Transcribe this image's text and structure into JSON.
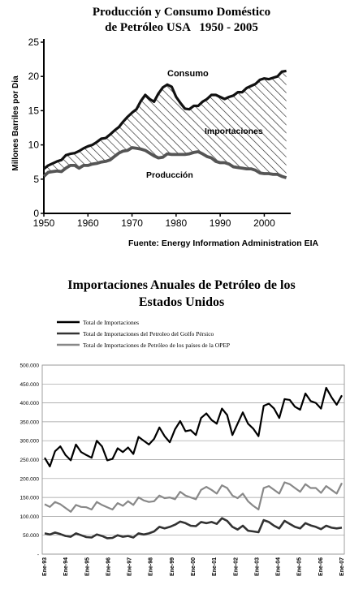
{
  "chart_data": [
    {
      "type": "area",
      "title_line1": "Producción y Consumo Doméstico",
      "title_line2": "de Petróleo USA   1950 - 2005",
      "ylabel": "Millones Barriles por Dia",
      "xlim": [
        1950,
        2006
      ],
      "ylim": [
        0,
        25
      ],
      "xticks": [
        1950,
        1960,
        1970,
        1980,
        1990,
        2000
      ],
      "yticks": [
        0,
        5,
        10,
        15,
        20,
        25
      ],
      "source_text": "Fuente:  Energy Information Administration  EIA",
      "annotations": [
        "Consumo",
        "Importaciones",
        "Producción"
      ],
      "x": [
        1950,
        1951,
        1952,
        1953,
        1954,
        1955,
        1956,
        1957,
        1958,
        1959,
        1960,
        1961,
        1962,
        1963,
        1964,
        1965,
        1966,
        1967,
        1968,
        1969,
        1970,
        1971,
        1972,
        1973,
        1974,
        1975,
        1976,
        1977,
        1978,
        1979,
        1980,
        1981,
        1982,
        1983,
        1984,
        1985,
        1986,
        1987,
        1988,
        1989,
        1990,
        1991,
        1992,
        1993,
        1994,
        1995,
        1996,
        1997,
        1998,
        1999,
        2000,
        2001,
        2002,
        2003,
        2004,
        2005
      ],
      "series": [
        {
          "name": "Consumo",
          "values": [
            6.5,
            7.0,
            7.3,
            7.6,
            7.8,
            8.5,
            8.7,
            8.8,
            9.1,
            9.5,
            9.8,
            10.0,
            10.4,
            10.9,
            11.0,
            11.5,
            12.1,
            12.6,
            13.4,
            14.1,
            14.7,
            15.2,
            16.4,
            17.3,
            16.7,
            16.3,
            17.5,
            18.4,
            18.8,
            18.5,
            17.0,
            16.1,
            15.3,
            15.2,
            15.7,
            15.7,
            16.3,
            16.7,
            17.3,
            17.3,
            17.0,
            16.7,
            17.0,
            17.2,
            17.7,
            17.7,
            18.3,
            18.6,
            18.9,
            19.5,
            19.7,
            19.6,
            19.8,
            20.0,
            20.7,
            20.8
          ]
        },
        {
          "name": "Producción",
          "values": [
            5.4,
            6.0,
            6.1,
            6.2,
            6.1,
            6.6,
            7.0,
            7.0,
            6.6,
            7.0,
            7.0,
            7.2,
            7.3,
            7.5,
            7.6,
            7.8,
            8.3,
            8.8,
            9.1,
            9.2,
            9.6,
            9.5,
            9.4,
            9.2,
            8.8,
            8.4,
            8.1,
            8.2,
            8.7,
            8.6,
            8.6,
            8.6,
            8.6,
            8.7,
            8.9,
            9.0,
            8.7,
            8.3,
            8.1,
            7.6,
            7.4,
            7.4,
            7.2,
            6.8,
            6.7,
            6.6,
            6.5,
            6.5,
            6.3,
            5.9,
            5.8,
            5.8,
            5.7,
            5.7,
            5.4,
            5.2
          ]
        }
      ]
    },
    {
      "type": "line",
      "title_line1": "Importaciones Anuales de Petróleo de los",
      "title_line2": "Estados Unidos",
      "ylim": [
        0,
        500000
      ],
      "yticks": [
        0,
        50000,
        100000,
        150000,
        200000,
        250000,
        300000,
        350000,
        400000,
        450000,
        500000
      ],
      "ytick_labels": [
        "-",
        "50.000",
        "100.000",
        "150.000",
        "200.000",
        "250.000",
        "300.000",
        "350.000",
        "400.000",
        "450.000",
        "500.000"
      ],
      "xtick_labels": [
        "Ene-93",
        "Ene-94",
        "Ene-95",
        "Ene-96",
        "Ene-97",
        "Ene-98",
        "Ene-99",
        "Ene-00",
        "Ene-01",
        "Ene-02",
        "Ene-03",
        "Ene-04",
        "Ene-05",
        "Ene-06",
        "Ene-07"
      ],
      "grid": true,
      "legend_position": "top-left",
      "x": [
        "Ene-93",
        "Abr-93",
        "Jul-93",
        "Oct-93",
        "Ene-94",
        "Abr-94",
        "Jul-94",
        "Oct-94",
        "Ene-95",
        "Abr-95",
        "Jul-95",
        "Oct-95",
        "Ene-96",
        "Abr-96",
        "Jul-96",
        "Oct-96",
        "Ene-97",
        "Abr-97",
        "Jul-97",
        "Oct-97",
        "Ene-98",
        "Abr-98",
        "Jul-98",
        "Oct-98",
        "Ene-99",
        "Abr-99",
        "Jul-99",
        "Oct-99",
        "Ene-00",
        "Abr-00",
        "Jul-00",
        "Oct-00",
        "Ene-01",
        "Abr-01",
        "Jul-01",
        "Oct-01",
        "Ene-02",
        "Abr-02",
        "Jul-02",
        "Oct-02",
        "Ene-03",
        "Abr-03",
        "Jul-03",
        "Oct-03",
        "Ene-04",
        "Abr-04",
        "Jul-04",
        "Oct-04",
        "Ene-05",
        "Abr-05",
        "Jul-05",
        "Oct-05",
        "Ene-06",
        "Abr-06",
        "Jul-06",
        "Oct-06",
        "Ene-07",
        "Abr-07"
      ],
      "series": [
        {
          "name": "Total de Importaciones",
          "color": "#000000",
          "values": [
            255000,
            232000,
            272000,
            285000,
            262000,
            248000,
            290000,
            270000,
            262000,
            255000,
            300000,
            285000,
            248000,
            252000,
            280000,
            270000,
            282000,
            265000,
            310000,
            300000,
            290000,
            305000,
            335000,
            312000,
            296000,
            330000,
            352000,
            325000,
            328000,
            315000,
            360000,
            372000,
            355000,
            345000,
            385000,
            368000,
            315000,
            345000,
            375000,
            345000,
            332000,
            312000,
            392000,
            398000,
            385000,
            360000,
            410000,
            408000,
            390000,
            382000,
            425000,
            405000,
            400000,
            385000,
            440000,
            415000,
            395000,
            420000
          ]
        },
        {
          "name": "Total de Importaciones del Petroleo del Golfo Pérsico",
          "color": "#333333",
          "values": [
            55000,
            52000,
            57000,
            53000,
            48000,
            46000,
            55000,
            50000,
            45000,
            44000,
            52000,
            48000,
            42000,
            43000,
            50000,
            46000,
            48000,
            44000,
            55000,
            52000,
            55000,
            60000,
            72000,
            68000,
            72000,
            78000,
            86000,
            82000,
            75000,
            74000,
            85000,
            82000,
            85000,
            80000,
            95000,
            88000,
            72000,
            65000,
            75000,
            62000,
            60000,
            58000,
            90000,
            85000,
            75000,
            68000,
            88000,
            80000,
            72000,
            68000,
            82000,
            76000,
            72000,
            66000,
            75000,
            70000,
            68000,
            70000
          ]
        },
        {
          "name": "Total de Importaciones de Petróleo de los países de la OPEP",
          "color": "#888888",
          "values": [
            132000,
            125000,
            138000,
            132000,
            122000,
            112000,
            130000,
            125000,
            124000,
            118000,
            138000,
            130000,
            124000,
            118000,
            135000,
            128000,
            140000,
            130000,
            150000,
            142000,
            138000,
            140000,
            155000,
            148000,
            150000,
            145000,
            165000,
            155000,
            150000,
            145000,
            170000,
            178000,
            170000,
            160000,
            182000,
            175000,
            155000,
            148000,
            160000,
            140000,
            128000,
            118000,
            175000,
            180000,
            170000,
            160000,
            190000,
            185000,
            175000,
            165000,
            185000,
            175000,
            175000,
            162000,
            180000,
            170000,
            160000,
            188000
          ]
        }
      ]
    }
  ]
}
